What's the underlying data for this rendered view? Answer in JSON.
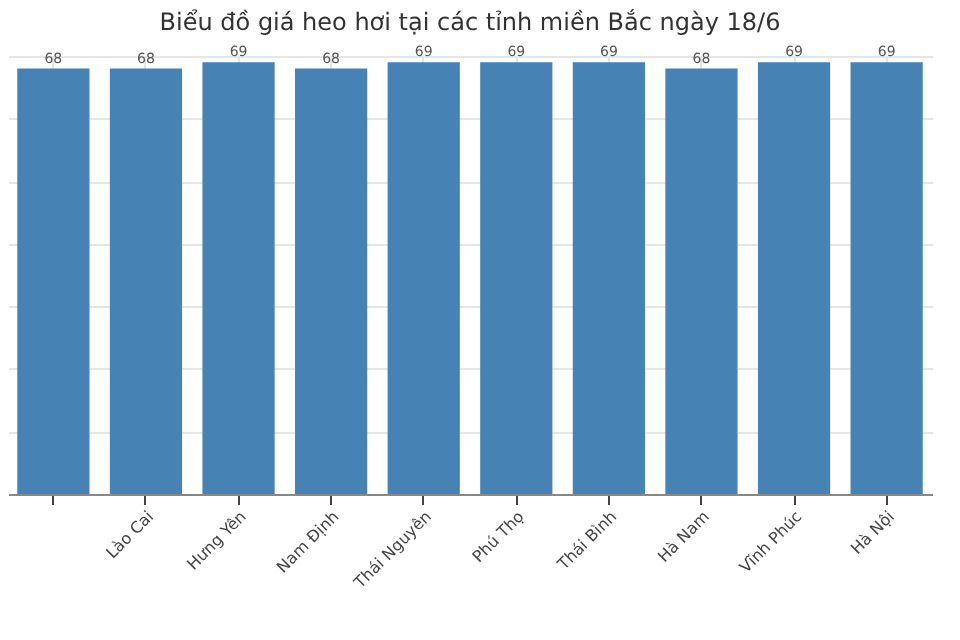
{
  "chart_data": {
    "type": "bar",
    "title": "Biểu đồ giá heo hơi tại các tỉnh miền Bắc ngày 18/6",
    "categories": [
      null,
      "Lào Cai",
      "Hưng Yên",
      "Nam Định",
      "Thái Nguyên",
      "Phú Thọ",
      "Thái Bình",
      "Hà Nam",
      "Vĩnh Phúc",
      "Hà Nội"
    ],
    "values": [
      68,
      68,
      69,
      68,
      69,
      69,
      69,
      68,
      69,
      69
    ],
    "color": "#4682b4",
    "tick_labels": "x",
    "grid": true,
    "data_labels": true
  }
}
